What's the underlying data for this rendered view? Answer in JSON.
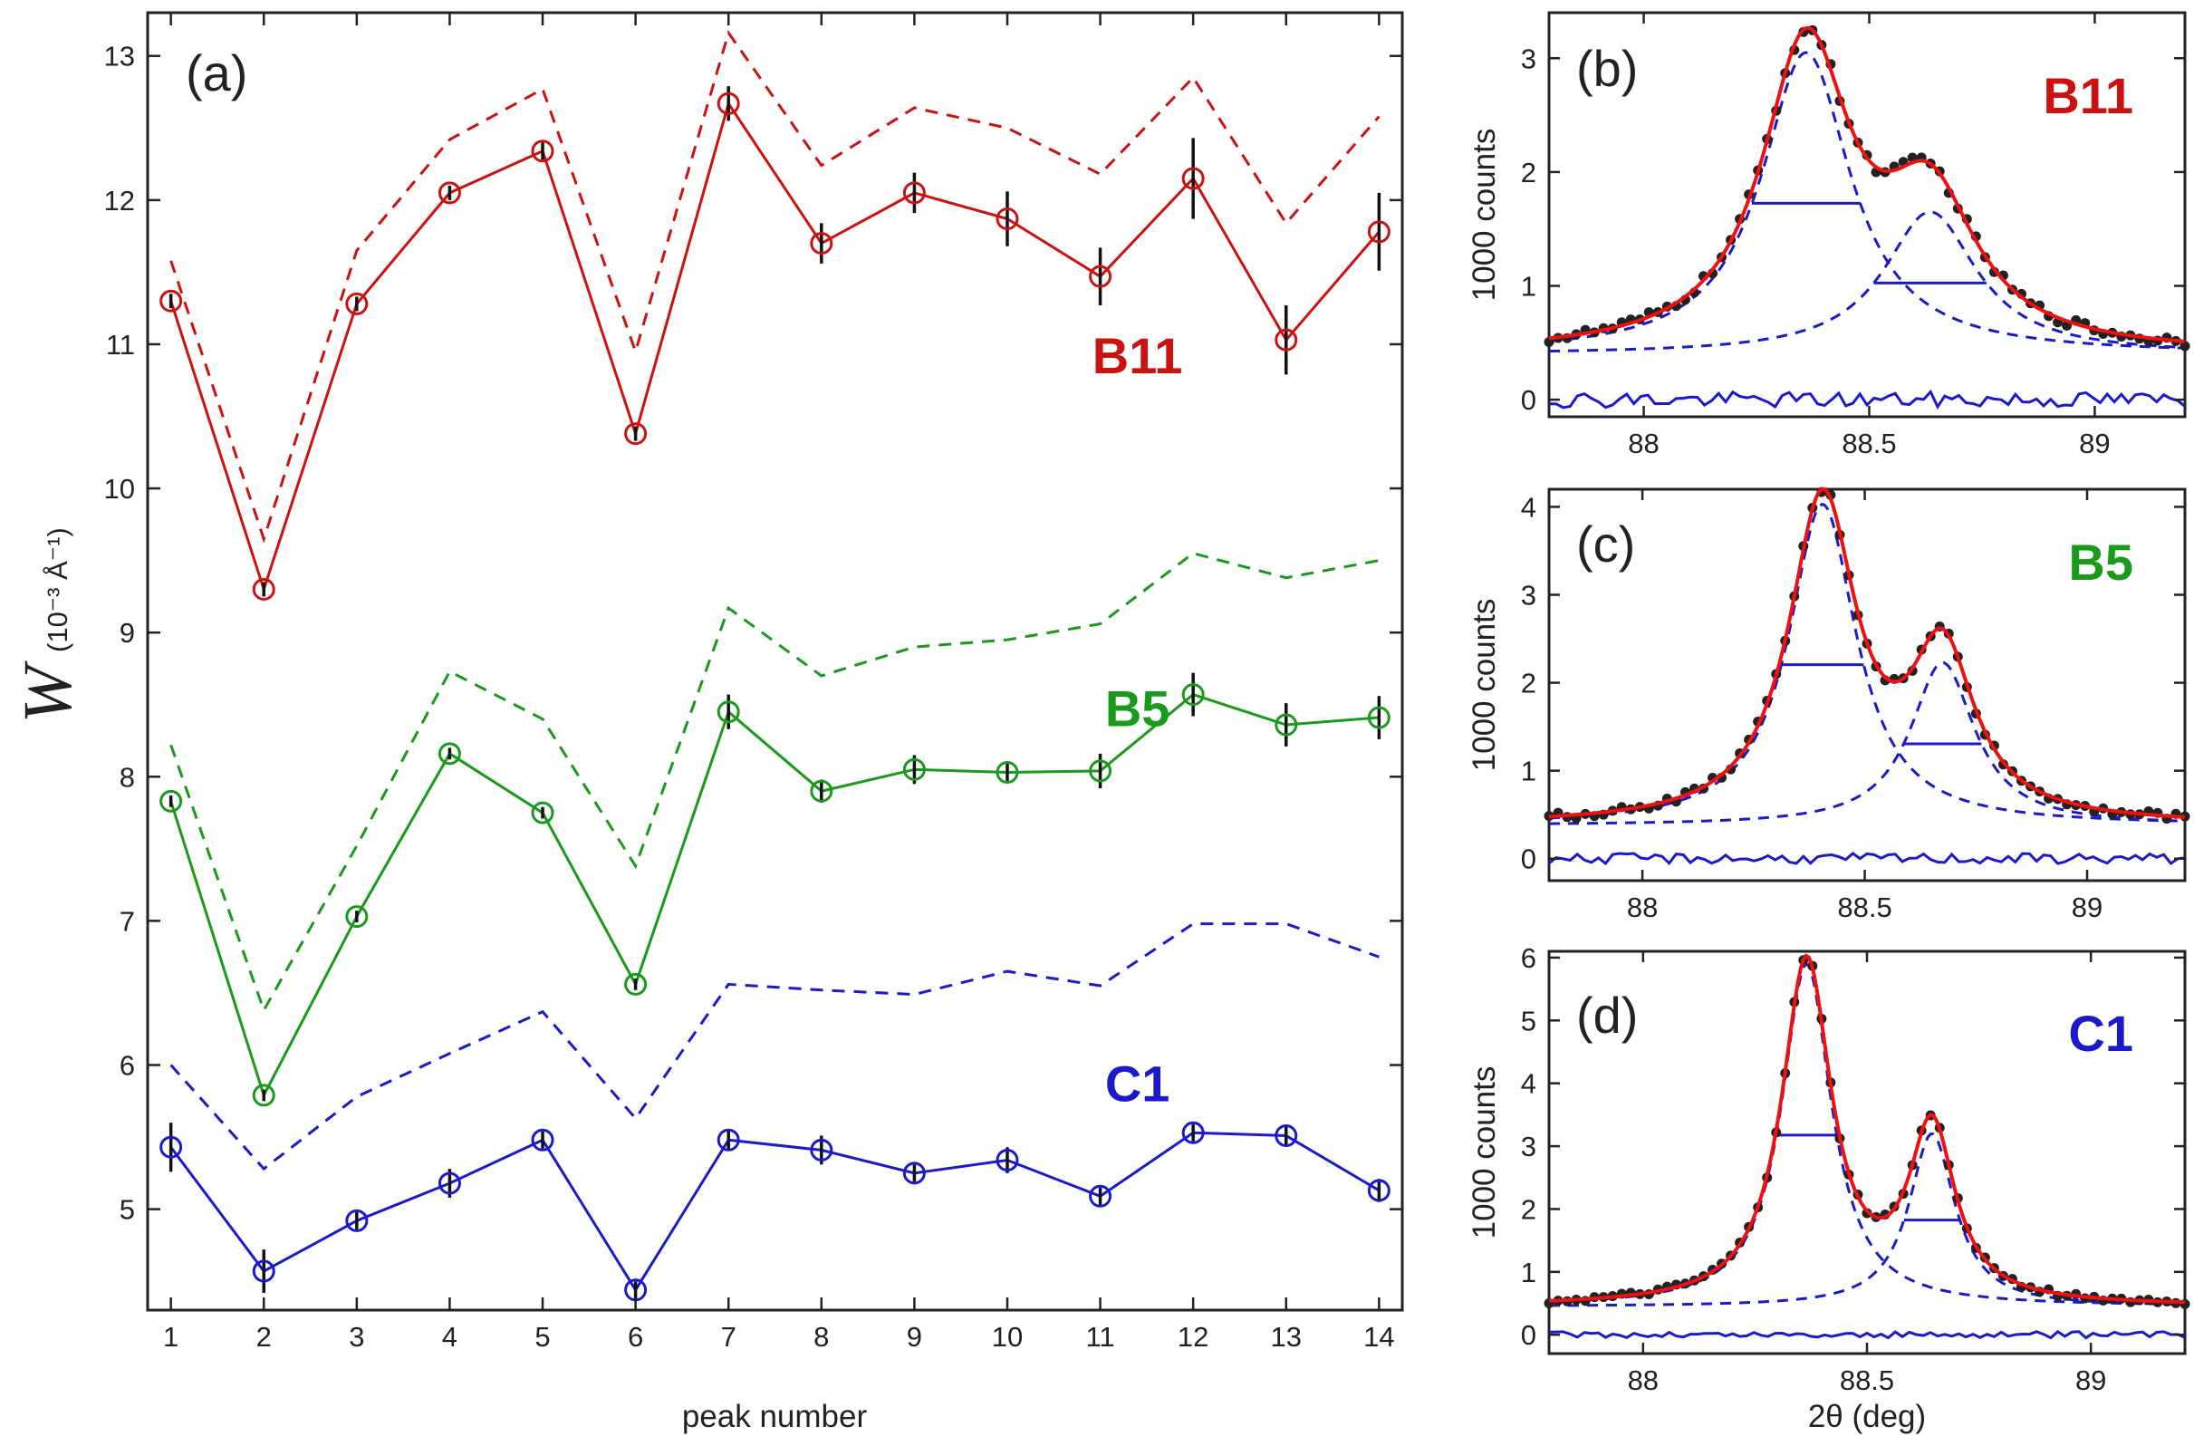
{
  "colors": {
    "B11": "#cc1111",
    "B5": "#1a9a1a",
    "C1": "#1a1acc",
    "fit": "#ee1111",
    "component": "#1a1acc",
    "points": "#222222",
    "axis": "#222222"
  },
  "chart_data": [
    {
      "id": "a",
      "type": "line",
      "panel_label": "(a)",
      "xlabel": "peak number",
      "ylabel_symbol": "W",
      "ylabel_units": "(10⁻³ Å⁻¹)",
      "xlim": [
        0.75,
        14.25
      ],
      "ylim": [
        4.3,
        13.3
      ],
      "xticks": [
        1,
        2,
        3,
        4,
        5,
        6,
        7,
        8,
        9,
        10,
        11,
        12,
        13,
        14
      ],
      "yticks": [
        5,
        6,
        7,
        8,
        9,
        10,
        11,
        12,
        13
      ],
      "grid": false,
      "series": [
        {
          "name": "B11",
          "label": "B11",
          "color_key": "B11",
          "label_at": [
            11.4,
            10.8
          ],
          "x": [
            1,
            2,
            3,
            4,
            5,
            6,
            7,
            8,
            9,
            10,
            11,
            12,
            13,
            14
          ],
          "values": [
            11.3,
            9.3,
            11.28,
            12.05,
            12.34,
            10.38,
            12.67,
            11.7,
            12.05,
            11.87,
            11.47,
            12.15,
            11.03,
            11.78
          ],
          "errors": [
            0.05,
            0.05,
            0.05,
            0.05,
            0.06,
            0.05,
            0.12,
            0.14,
            0.14,
            0.19,
            0.2,
            0.28,
            0.24,
            0.27
          ],
          "dashed": [
            11.58,
            9.65,
            11.65,
            12.42,
            12.77,
            10.95,
            13.16,
            12.24,
            12.64,
            12.5,
            12.18,
            12.85,
            11.84,
            12.58
          ]
        },
        {
          "name": "B5",
          "label": "B5",
          "color_key": "B5",
          "label_at": [
            11.4,
            8.35
          ],
          "x": [
            1,
            2,
            3,
            4,
            5,
            6,
            7,
            8,
            9,
            10,
            11,
            12,
            13,
            14
          ],
          "values": [
            7.83,
            5.79,
            7.03,
            8.16,
            7.75,
            6.56,
            8.45,
            7.9,
            8.05,
            8.03,
            8.04,
            8.57,
            8.36,
            8.41
          ],
          "errors": [
            0.04,
            0.04,
            0.04,
            0.04,
            0.04,
            0.04,
            0.12,
            0.08,
            0.1,
            0.07,
            0.12,
            0.15,
            0.15,
            0.15
          ],
          "dashed": [
            8.22,
            6.38,
            7.52,
            8.73,
            8.4,
            7.38,
            9.17,
            8.7,
            8.9,
            8.95,
            9.06,
            9.55,
            9.38,
            9.5
          ]
        },
        {
          "name": "C1",
          "label": "C1",
          "color_key": "C1",
          "label_at": [
            11.4,
            5.75
          ],
          "x": [
            1,
            2,
            3,
            4,
            5,
            6,
            7,
            8,
            9,
            10,
            11,
            12,
            13,
            14
          ],
          "values": [
            5.43,
            4.57,
            4.92,
            5.18,
            5.48,
            4.44,
            5.48,
            5.41,
            5.25,
            5.34,
            5.09,
            5.53,
            5.51,
            5.13
          ],
          "errors": [
            0.17,
            0.15,
            0.06,
            0.1,
            0.06,
            0.06,
            0.07,
            0.1,
            0.06,
            0.09,
            0.06,
            0.06,
            0.06,
            0.08
          ],
          "dashed": [
            6.0,
            5.28,
            5.78,
            6.08,
            6.37,
            5.63,
            6.56,
            6.52,
            6.49,
            6.65,
            6.55,
            6.98,
            6.98,
            6.75
          ]
        }
      ]
    },
    {
      "id": "b",
      "type": "line",
      "panel_label": "(b)",
      "sample_label": "B11",
      "color_key": "B11",
      "xlabel": "",
      "ylabel": "1000 counts",
      "xlim": [
        87.79,
        89.2
      ],
      "ylim": [
        -0.15,
        3.4
      ],
      "xticks": [
        88,
        88.5,
        89
      ],
      "xtick_labels": [
        "88",
        "88.5",
        "89"
      ],
      "yticks": [
        0,
        1,
        2,
        3
      ],
      "grid": false,
      "background": 0.4,
      "peaks": [
        {
          "center": 88.36,
          "amplitude": 2.65,
          "fwhm": 0.24
        },
        {
          "center": 88.635,
          "amplitude": 1.25,
          "fwhm": 0.25
        }
      ],
      "residual_level": 0.0,
      "residual_noise": 0.07
    },
    {
      "id": "c",
      "type": "line",
      "panel_label": "(c)",
      "sample_label": "B5",
      "color_key": "B5",
      "xlabel": "",
      "ylabel": "1000 counts",
      "xlim": [
        87.79,
        89.22
      ],
      "ylim": [
        -0.25,
        4.2
      ],
      "xticks": [
        88,
        88.5,
        89
      ],
      "xtick_labels": [
        "88",
        "88.5",
        "89"
      ],
      "yticks": [
        0,
        1,
        2,
        3,
        4
      ],
      "grid": false,
      "background": 0.38,
      "peaks": [
        {
          "center": 88.405,
          "amplitude": 3.65,
          "fwhm": 0.185
        },
        {
          "center": 88.675,
          "amplitude": 1.85,
          "fwhm": 0.175
        }
      ],
      "residual_level": 0.0,
      "residual_noise": 0.06
    },
    {
      "id": "d",
      "type": "line",
      "panel_label": "(d)",
      "sample_label": "C1",
      "color_key": "C1",
      "xlabel": "2θ (deg)",
      "ylabel": "1000 counts",
      "xlim": [
        87.79,
        89.21
      ],
      "ylim": [
        -0.3,
        6.1
      ],
      "xticks": [
        88,
        88.5,
        89
      ],
      "xtick_labels": [
        "88",
        "88.5",
        "89"
      ],
      "yticks": [
        0,
        1,
        2,
        3,
        4,
        5,
        6
      ],
      "grid": false,
      "background": 0.45,
      "peaks": [
        {
          "center": 88.365,
          "amplitude": 5.45,
          "fwhm": 0.135
        },
        {
          "center": 88.645,
          "amplitude": 2.75,
          "fwhm": 0.125
        }
      ],
      "residual_level": 0.0,
      "residual_noise": 0.05
    }
  ]
}
